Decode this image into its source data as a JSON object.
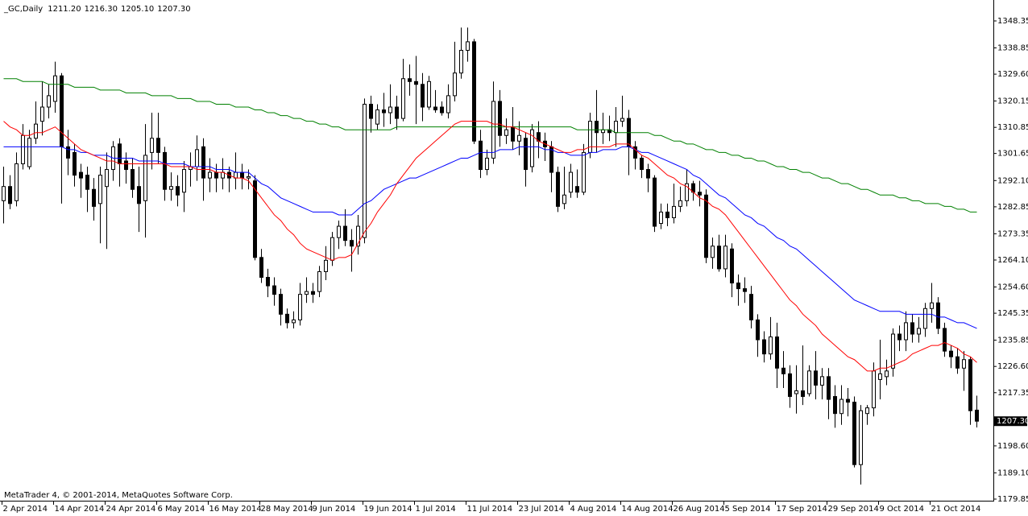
{
  "chart_data": {
    "type": "candlestick",
    "title": "_GC,Daily",
    "header_values": [
      "1211.20",
      "1216.30",
      "1205.10",
      "1207.30"
    ],
    "footer": "MetaTrader 4, © 2001-2014, MetaQuotes Software Corp.",
    "categories": [
      "2 Apr 2014",
      null,
      null,
      null,
      null,
      null,
      null,
      null,
      "14 Apr 2014",
      null,
      null,
      null,
      null,
      null,
      null,
      null,
      "24 Apr 2014",
      null,
      null,
      null,
      null,
      null,
      null,
      null,
      "6 May 2014",
      null,
      null,
      null,
      null,
      null,
      null,
      null,
      "16 May 2014",
      null,
      null,
      null,
      null,
      null,
      null,
      null,
      "28 May 2014",
      null,
      null,
      null,
      null,
      null,
      null,
      null,
      "9 Jun 2014",
      null,
      null,
      null,
      null,
      null,
      null,
      null,
      "19 Jun 2014",
      null,
      null,
      null,
      null,
      null,
      null,
      null,
      "1 Jul 2014",
      null,
      null,
      null,
      null,
      null,
      null,
      null,
      "11 Jul 2014",
      null,
      null,
      null,
      null,
      null,
      null,
      null,
      "23 Jul 2014",
      null,
      null,
      null,
      null,
      null,
      null,
      null,
      "4 Aug 2014",
      null,
      null,
      null,
      null,
      null,
      null,
      null,
      "14 Aug 2014",
      null,
      null,
      null,
      null,
      null,
      null,
      null,
      "26 Aug 2014",
      null,
      null,
      null,
      null,
      null,
      null,
      null,
      "5 Sep 2014",
      null,
      null,
      null,
      null,
      null,
      null,
      null,
      "17 Sep 2014",
      null,
      null,
      null,
      null,
      null,
      null,
      null,
      "29 Sep 2014",
      null,
      null,
      null,
      null,
      null,
      null,
      null,
      "9 Oct 2014",
      null,
      null,
      null,
      null,
      null,
      null,
      null,
      "21 Oct 2014",
      null,
      null,
      null,
      null,
      null,
      null,
      null
    ],
    "open": [
      1285,
      1290,
      1285,
      1298,
      1297,
      1307,
      1313,
      1318,
      1320,
      1329,
      1304,
      1302,
      1295,
      1294,
      1289,
      1284,
      1290,
      1296,
      1305,
      1299,
      1296,
      1290,
      1285,
      1302,
      1307,
      1302,
      1289,
      1290,
      1288,
      1296,
      1297,
      1304,
      1293,
      1295,
      1293,
      1295,
      1293,
      1295,
      1293,
      1292,
      1265,
      1258,
      1255,
      1252,
      1245,
      1242,
      1243,
      1252,
      1253,
      1253,
      1260,
      1264,
      1272,
      1276,
      1271,
      1269,
      1272,
      1319,
      1312,
      1317,
      1316,
      1318,
      1314,
      1328,
      1327,
      1326,
      1318,
      1318,
      1318,
      1316,
      1322,
      1330,
      1338,
      1341,
      1306,
      1296,
      1300,
      1320,
      1308,
      1311,
      1306,
      1307,
      1297,
      1309,
      1306,
      1304,
      1295,
      1284,
      1288,
      1290,
      1288,
      1302,
      1313,
      1309,
      1310,
      1309,
      1313,
      1314,
      1304,
      1300,
      1296,
      1293,
      1277,
      1281,
      1279,
      1283,
      1285,
      1291,
      1288,
      1287,
      1265,
      1269,
      1261,
      1268,
      1256,
      1254,
      1252,
      1243,
      1236,
      1231,
      1237,
      1226,
      1224,
      1217,
      1218,
      1217,
      1225,
      1220,
      1223,
      1216,
      1210,
      1215,
      1214,
      1192,
      1210,
      1212,
      1222,
      1223,
      1226,
      1238,
      1236,
      1242,
      1238,
      1240,
      1247,
      1249,
      1240,
      1232,
      1230,
      1226,
      1229,
      1211.2
    ],
    "high": [
      1297,
      1294,
      1302,
      1312,
      1310,
      1320,
      1327,
      1326,
      1334,
      1330,
      1310,
      1305,
      1298,
      1297,
      1293,
      1297,
      1302,
      1306,
      1307,
      1302,
      1300,
      1297,
      1312,
      1316,
      1316,
      1304,
      1295,
      1294,
      1299,
      1302,
      1308,
      1307,
      1300,
      1298,
      1300,
      1297,
      1302,
      1298,
      1296,
      1294,
      1268,
      1261,
      1258,
      1254,
      1247,
      1246,
      1256,
      1258,
      1256,
      1262,
      1269,
      1274,
      1278,
      1282,
      1275,
      1280,
      1321,
      1322,
      1319,
      1323,
      1326,
      1322,
      1335,
      1333,
      1336,
      1330,
      1329,
      1324,
      1320,
      1326,
      1341,
      1346,
      1346,
      1342,
      1310,
      1303,
      1327,
      1324,
      1314,
      1318,
      1313,
      1309,
      1312,
      1313,
      1309,
      1306,
      1297,
      1297,
      1298,
      1296,
      1305,
      1316,
      1324,
      1316,
      1315,
      1318,
      1322,
      1317,
      1306,
      1301,
      1298,
      1294,
      1284,
      1284,
      1291,
      1290,
      1296,
      1292,
      1292,
      1289,
      1272,
      1273,
      1273,
      1270,
      1259,
      1258,
      1255,
      1245,
      1239,
      1244,
      1242,
      1232,
      1227,
      1227,
      1234,
      1227,
      1232,
      1226,
      1226,
      1220,
      1220,
      1219,
      1216,
      1213,
      1213,
      1228,
      1236,
      1229,
      1240,
      1241,
      1246,
      1245,
      1244,
      1249,
      1256,
      1251,
      1242,
      1234,
      1233,
      1232,
      1230,
      1216.3
    ],
    "low": [
      1277,
      1282,
      1283,
      1296,
      1296,
      1305,
      1308,
      1314,
      1316,
      1284,
      1294,
      1290,
      1286,
      1281,
      1278,
      1270,
      1268,
      1292,
      1290,
      1291,
      1286,
      1274,
      1272,
      1296,
      1298,
      1285,
      1285,
      1283,
      1281,
      1290,
      1292,
      1285,
      1288,
      1288,
      1289,
      1288,
      1289,
      1289,
      1289,
      1264,
      1256,
      1251,
      1248,
      1241,
      1240,
      1240,
      1241,
      1249,
      1249,
      1251,
      1257,
      1262,
      1268,
      1269,
      1260,
      1266,
      1270,
      1309,
      1310,
      1311,
      1312,
      1310,
      1313,
      1322,
      1312,
      1313,
      1317,
      1316,
      1315,
      1314,
      1320,
      1328,
      1334,
      1305,
      1293,
      1294,
      1298,
      1304,
      1305,
      1303,
      1301,
      1290,
      1295,
      1300,
      1299,
      1288,
      1281,
      1282,
      1286,
      1286,
      1287,
      1300,
      1302,
      1305,
      1306,
      1304,
      1311,
      1294,
      1296,
      1293,
      1288,
      1274,
      1275,
      1276,
      1277,
      1281,
      1283,
      1285,
      1283,
      1263,
      1261,
      1260,
      1258,
      1251,
      1248,
      1249,
      1240,
      1230,
      1228,
      1229,
      1219,
      1219,
      1212,
      1210,
      1213,
      1216,
      1215,
      1215,
      1208,
      1205,
      1206,
      1209,
      1191,
      1185,
      1206,
      1209,
      1215,
      1220,
      1223,
      1232,
      1232,
      1235,
      1235,
      1237,
      1242,
      1238,
      1230,
      1226,
      1224,
      1218,
      1206,
      1205.1
    ],
    "close": [
      1290,
      1284,
      1298,
      1308,
      1307,
      1312,
      1318,
      1322,
      1329,
      1304,
      1300,
      1294,
      1293,
      1289,
      1283,
      1294,
      1296,
      1304,
      1298,
      1296,
      1289,
      1284,
      1301,
      1307,
      1302,
      1289,
      1290,
      1287,
      1296,
      1297,
      1303,
      1293,
      1295,
      1293,
      1295,
      1293,
      1295,
      1293,
      1293.5,
      1265,
      1258,
      1255,
      1252,
      1245,
      1242,
      1243,
      1252,
      1253,
      1252,
      1260,
      1264,
      1272,
      1276,
      1271,
      1269,
      1276,
      1319,
      1314,
      1317,
      1316,
      1318,
      1314,
      1328,
      1327,
      1326,
      1318,
      1327,
      1317,
      1316,
      1322,
      1330,
      1338,
      1341,
      1306,
      1296,
      1300,
      1320,
      1308,
      1310,
      1306,
      1308,
      1296,
      1310,
      1306,
      1304,
      1295,
      1283,
      1287,
      1295,
      1288,
      1302,
      1313,
      1309,
      1310,
      1309,
      1313,
      1314,
      1304,
      1300,
      1296,
      1293,
      1276,
      1281,
      1279,
      1283,
      1285,
      1291,
      1288,
      1287,
      1265,
      1269,
      1261,
      1269,
      1256,
      1254,
      1253,
      1243,
      1236,
      1231,
      1237,
      1226,
      1224,
      1216,
      1218,
      1216,
      1225,
      1220,
      1223,
      1215,
      1210,
      1215,
      1214,
      1192,
      1211,
      1212,
      1225,
      1224,
      1225,
      1238,
      1236,
      1242,
      1238,
      1240,
      1247,
      1249,
      1240,
      1232,
      1230,
      1226,
      1229,
      1211,
      1207.3
    ],
    "bull_color": "#ffffff",
    "bear_color": "#000000",
    "series": [
      {
        "type": "line",
        "color": "#008000",
        "values": [
          1328,
          1328,
          1328,
          1327,
          1327,
          1327,
          1327,
          1326,
          1326,
          1326,
          1326,
          1325,
          1325,
          1325,
          1325,
          1324,
          1324,
          1324,
          1324,
          1323,
          1323,
          1323,
          1323,
          1322,
          1322,
          1322,
          1322,
          1321,
          1321,
          1321,
          1320,
          1320,
          1320,
          1319,
          1319,
          1319,
          1318,
          1318,
          1318,
          1317,
          1317,
          1316,
          1316,
          1315,
          1315,
          1314,
          1314,
          1313,
          1313,
          1312,
          1312,
          1311,
          1311,
          1310,
          1310,
          1310,
          1310,
          1310,
          1310,
          1310,
          1310,
          1311,
          1311,
          1311,
          1311,
          1311,
          1311,
          1311,
          1311,
          1311,
          1311,
          1311,
          1311,
          1311,
          1311,
          1311,
          1311,
          1311,
          1311,
          1311,
          1311,
          1311,
          1311,
          1311,
          1311,
          1311,
          1311,
          1311,
          1311,
          1310,
          1310,
          1310,
          1310,
          1310,
          1310,
          1309,
          1309,
          1309,
          1309,
          1309,
          1309,
          1308,
          1308,
          1307,
          1306,
          1306,
          1305,
          1305,
          1304,
          1303,
          1303,
          1302,
          1302,
          1301,
          1301,
          1300,
          1300,
          1299,
          1299,
          1298,
          1297,
          1297,
          1296,
          1296,
          1295,
          1295,
          1294,
          1293,
          1293,
          1292,
          1291,
          1291,
          1290,
          1289,
          1289,
          1288,
          1287,
          1287,
          1287,
          1286,
          1286,
          1285,
          1285,
          1284,
          1284,
          1284,
          1283,
          1283,
          1282,
          1282,
          1281,
          1281
        ]
      },
      {
        "type": "line",
        "color": "#0000ff",
        "values": [
          1304,
          1304,
          1304,
          1304,
          1304,
          1304,
          1304,
          1304,
          1304,
          1304,
          1303,
          1303,
          1302,
          1302,
          1301,
          1301,
          1301,
          1300,
          1300,
          1300,
          1300,
          1299,
          1299,
          1299,
          1299,
          1298,
          1298,
          1298,
          1298,
          1297,
          1297,
          1297,
          1297,
          1296,
          1296,
          1296,
          1295,
          1295,
          1295,
          1293,
          1291,
          1290,
          1288,
          1286,
          1285,
          1284,
          1283,
          1282,
          1281,
          1281,
          1281,
          1281,
          1280,
          1280,
          1280,
          1282,
          1284,
          1285,
          1287,
          1289,
          1290,
          1291,
          1292,
          1293,
          1293,
          1294,
          1295,
          1296,
          1297,
          1298,
          1299,
          1300,
          1300,
          1301,
          1302,
          1302,
          1302,
          1303,
          1303,
          1303,
          1304,
          1304,
          1304,
          1304,
          1303,
          1303,
          1302,
          1302,
          1301,
          1301,
          1301,
          1302,
          1302,
          1303,
          1303,
          1303,
          1304,
          1304,
          1303,
          1302,
          1302,
          1301,
          1300,
          1299,
          1298,
          1297,
          1296,
          1294,
          1293,
          1291,
          1289,
          1287,
          1286,
          1284,
          1282,
          1280,
          1279,
          1277,
          1276,
          1274,
          1272,
          1271,
          1269,
          1268,
          1266,
          1264,
          1262,
          1260,
          1258,
          1256,
          1254,
          1252,
          1250,
          1249,
          1248,
          1247,
          1246,
          1246,
          1246,
          1246,
          1245,
          1245,
          1245,
          1245,
          1245,
          1244,
          1244,
          1243,
          1242,
          1242,
          1241,
          1240
        ]
      },
      {
        "type": "line",
        "color": "#ff0000",
        "values": [
          1313,
          1311,
          1310,
          1308,
          1308,
          1309,
          1309,
          1310,
          1311,
          1309,
          1307,
          1305,
          1303,
          1302,
          1301,
          1300,
          1299,
          1299,
          1298,
          1298,
          1298,
          1298,
          1298,
          1298,
          1298,
          1298,
          1297,
          1297,
          1297,
          1297,
          1296,
          1296,
          1296,
          1295,
          1295,
          1294,
          1293,
          1293,
          1292,
          1289,
          1286,
          1283,
          1280,
          1278,
          1275,
          1273,
          1270,
          1268,
          1267,
          1266,
          1265,
          1264,
          1265,
          1265,
          1266,
          1270,
          1274,
          1277,
          1281,
          1284,
          1287,
          1291,
          1294,
          1297,
          1300,
          1302,
          1304,
          1306,
          1308,
          1310,
          1312,
          1313,
          1313,
          1313,
          1313,
          1313,
          1312,
          1312,
          1311,
          1311,
          1310,
          1309,
          1308,
          1306,
          1305,
          1304,
          1303,
          1302,
          1302,
          1303,
          1303,
          1304,
          1304,
          1304,
          1304,
          1305,
          1305,
          1305,
          1303,
          1301,
          1300,
          1298,
          1296,
          1294,
          1293,
          1291,
          1290,
          1288,
          1286,
          1285,
          1283,
          1282,
          1280,
          1277,
          1274,
          1271,
          1268,
          1265,
          1262,
          1259,
          1256,
          1253,
          1250,
          1248,
          1245,
          1243,
          1241,
          1238,
          1236,
          1234,
          1232,
          1230,
          1229,
          1227,
          1225,
          1225,
          1226,
          1226,
          1227,
          1228,
          1229,
          1231,
          1232,
          1233,
          1234,
          1234,
          1235,
          1234,
          1233,
          1231,
          1230,
          1228
        ]
      }
    ],
    "ylim": [
      1179.28,
      1355.16
    ],
    "yticks": [
      1348.35,
      1338.85,
      {
        "value": 1329.6,
        "label": "1329.60"
      },
      1320.15,
      1310.85,
      1301.65,
      {
        "value": 1292.1,
        "label": "1292.10"
      },
      1282.85,
      1273.35,
      {
        "value": 1264.1,
        "label": "1264.10"
      },
      {
        "value": 1254.6,
        "label": "1254.60"
      },
      1245.35,
      1235.85,
      {
        "value": 1226.6,
        "label": "1226.60"
      },
      1217.35,
      {
        "value": 1198.6,
        "label": "1198.60"
      },
      {
        "value": 1189.1,
        "label": "1189.10"
      },
      1179.85
    ],
    "last_price": {
      "value": 1207.3,
      "label": "1207.30"
    },
    "grid": false
  }
}
